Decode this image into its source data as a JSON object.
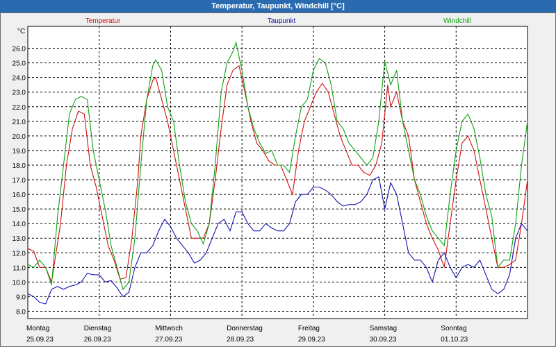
{
  "window": {
    "title": "Temperatur, Taupunkt, Windchill [°C]"
  },
  "chart_data": {
    "type": "line",
    "ylabel": "°C",
    "ylim": [
      7.5,
      27.5
    ],
    "yticks": [
      "8.0",
      "9.0",
      "10.0",
      "11.0",
      "12.0",
      "13.0",
      "14.0",
      "15.0",
      "16.0",
      "17.0",
      "18.0",
      "19.0",
      "20.0",
      "21.0",
      "22.0",
      "23.0",
      "24.0",
      "25.0",
      "26.0"
    ],
    "xlim": [
      0,
      168
    ],
    "days": [
      {
        "name": "Montag",
        "date": "25.09.23"
      },
      {
        "name": "Dienstag",
        "date": "26.09.23"
      },
      {
        "name": "Mittwoch",
        "date": "27.09.23"
      },
      {
        "name": "Donnerstag",
        "date": "28.09.23"
      },
      {
        "name": "Freitag",
        "date": "29.09.23"
      },
      {
        "name": "Samstag",
        "date": "30.09.23"
      },
      {
        "name": "Sonntag",
        "date": "01.10.23"
      }
    ],
    "series": [
      {
        "name": "Temperatur",
        "color": "#d01010",
        "points": [
          [
            0,
            12.3
          ],
          [
            2,
            12.1
          ],
          [
            4,
            11.0
          ],
          [
            6,
            11.0
          ],
          [
            8,
            10.0
          ],
          [
            11,
            14.0
          ],
          [
            13,
            18.0
          ],
          [
            15,
            20.5
          ],
          [
            17,
            21.7
          ],
          [
            19,
            21.5
          ],
          [
            21,
            18.0
          ],
          [
            23,
            16.5
          ],
          [
            25,
            14.5
          ],
          [
            27,
            12.5
          ],
          [
            29,
            11.5
          ],
          [
            31,
            10.2
          ],
          [
            33,
            10.3
          ],
          [
            35,
            13.0
          ],
          [
            37,
            17.0
          ],
          [
            38,
            20.0
          ],
          [
            40,
            22.5
          ],
          [
            42,
            23.8
          ],
          [
            43,
            24.0
          ],
          [
            45,
            22.5
          ],
          [
            47,
            21.0
          ],
          [
            49,
            19.0
          ],
          [
            51,
            17.0
          ],
          [
            53,
            15.0
          ],
          [
            55,
            13.0
          ],
          [
            57,
            13.0
          ],
          [
            59,
            13.0
          ],
          [
            61,
            14.0
          ],
          [
            63,
            17.0
          ],
          [
            65,
            20.5
          ],
          [
            67,
            23.5
          ],
          [
            69,
            24.5
          ],
          [
            71,
            24.8
          ],
          [
            73,
            23.0
          ],
          [
            75,
            21.0
          ],
          [
            77,
            19.5
          ],
          [
            79,
            19.0
          ],
          [
            81,
            18.3
          ],
          [
            83,
            18.0
          ],
          [
            85,
            18.0
          ],
          [
            87,
            17.0
          ],
          [
            89,
            16.0
          ],
          [
            91,
            19.0
          ],
          [
            93,
            21.0
          ],
          [
            95,
            22.0
          ],
          [
            97,
            23.0
          ],
          [
            99,
            23.6
          ],
          [
            101,
            23.0
          ],
          [
            103,
            21.5
          ],
          [
            105,
            20.0
          ],
          [
            107,
            19.0
          ],
          [
            109,
            18.0
          ],
          [
            111,
            18.0
          ],
          [
            113,
            17.5
          ],
          [
            115,
            17.3
          ],
          [
            117,
            18.0
          ],
          [
            119,
            19.5
          ],
          [
            121,
            23.5
          ],
          [
            122,
            22.0
          ],
          [
            124,
            23.0
          ],
          [
            126,
            21.0
          ],
          [
            128,
            20.0
          ],
          [
            130,
            17.0
          ],
          [
            132,
            15.5
          ],
          [
            134,
            14.0
          ],
          [
            136,
            13.0
          ],
          [
            138,
            12.2
          ],
          [
            140,
            11.0
          ],
          [
            142,
            14.0
          ],
          [
            144,
            17.0
          ],
          [
            146,
            19.5
          ],
          [
            148,
            20.0
          ],
          [
            150,
            19.0
          ],
          [
            152,
            17.0
          ],
          [
            154,
            15.0
          ],
          [
            156,
            13.0
          ],
          [
            158,
            11.0
          ],
          [
            160,
            11.0
          ],
          [
            162,
            11.2
          ],
          [
            164,
            11.5
          ],
          [
            166,
            14.0
          ],
          [
            168,
            17.0
          ]
        ]
      },
      {
        "name": "Taupunkt",
        "color": "#1010b0",
        "points": [
          [
            0,
            9.2
          ],
          [
            2,
            9.0
          ],
          [
            4,
            8.6
          ],
          [
            6,
            8.5
          ],
          [
            8,
            9.5
          ],
          [
            10,
            9.7
          ],
          [
            12,
            9.5
          ],
          [
            14,
            9.7
          ],
          [
            16,
            9.8
          ],
          [
            18,
            10.0
          ],
          [
            20,
            10.6
          ],
          [
            22,
            10.5
          ],
          [
            24,
            10.5
          ],
          [
            26,
            10.0
          ],
          [
            28,
            10.1
          ],
          [
            30,
            9.6
          ],
          [
            32,
            9.0
          ],
          [
            34,
            9.3
          ],
          [
            36,
            11.0
          ],
          [
            38,
            12.0
          ],
          [
            40,
            12.0
          ],
          [
            42,
            12.5
          ],
          [
            44,
            13.5
          ],
          [
            46,
            14.3
          ],
          [
            48,
            13.8
          ],
          [
            50,
            13.0
          ],
          [
            52,
            12.5
          ],
          [
            54,
            12.0
          ],
          [
            56,
            11.3
          ],
          [
            58,
            11.5
          ],
          [
            60,
            12.0
          ],
          [
            62,
            13.0
          ],
          [
            64,
            14.0
          ],
          [
            66,
            14.3
          ],
          [
            68,
            13.5
          ],
          [
            70,
            14.8
          ],
          [
            72,
            14.8
          ],
          [
            74,
            14.0
          ],
          [
            76,
            13.5
          ],
          [
            78,
            13.5
          ],
          [
            80,
            14.0
          ],
          [
            82,
            13.7
          ],
          [
            84,
            13.5
          ],
          [
            86,
            13.5
          ],
          [
            88,
            14.0
          ],
          [
            90,
            15.5
          ],
          [
            92,
            16.0
          ],
          [
            94,
            16.0
          ],
          [
            96,
            16.5
          ],
          [
            98,
            16.5
          ],
          [
            100,
            16.3
          ],
          [
            102,
            16.0
          ],
          [
            104,
            15.5
          ],
          [
            106,
            15.2
          ],
          [
            108,
            15.3
          ],
          [
            110,
            15.3
          ],
          [
            112,
            15.5
          ],
          [
            114,
            16.0
          ],
          [
            116,
            17.0
          ],
          [
            118,
            17.2
          ],
          [
            120,
            15.0
          ],
          [
            122,
            16.8
          ],
          [
            124,
            16.0
          ],
          [
            126,
            14.0
          ],
          [
            128,
            12.0
          ],
          [
            130,
            11.5
          ],
          [
            132,
            11.5
          ],
          [
            134,
            11.0
          ],
          [
            136,
            10.0
          ],
          [
            138,
            11.5
          ],
          [
            140,
            12.0
          ],
          [
            142,
            11.0
          ],
          [
            144,
            10.3
          ],
          [
            146,
            11.0
          ],
          [
            148,
            11.2
          ],
          [
            150,
            11.0
          ],
          [
            152,
            11.5
          ],
          [
            154,
            10.5
          ],
          [
            156,
            9.5
          ],
          [
            158,
            9.2
          ],
          [
            160,
            9.5
          ],
          [
            162,
            10.5
          ],
          [
            164,
            13.0
          ],
          [
            166,
            14.0
          ],
          [
            168,
            13.5
          ]
        ]
      },
      {
        "name": "Windchill",
        "color": "#10a010",
        "points": [
          [
            0,
            11.2
          ],
          [
            2,
            11.0
          ],
          [
            4,
            11.5
          ],
          [
            6,
            11.0
          ],
          [
            8,
            9.8
          ],
          [
            10,
            14.5
          ],
          [
            12,
            18.0
          ],
          [
            14,
            21.5
          ],
          [
            16,
            22.5
          ],
          [
            18,
            22.7
          ],
          [
            20,
            22.5
          ],
          [
            22,
            19.0
          ],
          [
            24,
            17.0
          ],
          [
            26,
            15.0
          ],
          [
            28,
            12.5
          ],
          [
            30,
            11.0
          ],
          [
            32,
            9.5
          ],
          [
            34,
            10.0
          ],
          [
            36,
            13.0
          ],
          [
            38,
            18.0
          ],
          [
            40,
            22.5
          ],
          [
            42,
            24.8
          ],
          [
            43,
            25.2
          ],
          [
            45,
            24.5
          ],
          [
            47,
            22.0
          ],
          [
            49,
            21.0
          ],
          [
            51,
            18.0
          ],
          [
            53,
            15.5
          ],
          [
            55,
            14.0
          ],
          [
            57,
            13.5
          ],
          [
            59,
            12.6
          ],
          [
            61,
            14.0
          ],
          [
            63,
            18.0
          ],
          [
            65,
            23.0
          ],
          [
            67,
            25.0
          ],
          [
            69,
            25.8
          ],
          [
            70,
            26.4
          ],
          [
            72,
            24.5
          ],
          [
            74,
            22.0
          ],
          [
            76,
            20.5
          ],
          [
            78,
            19.5
          ],
          [
            80,
            18.8
          ],
          [
            82,
            19.0
          ],
          [
            84,
            18.0
          ],
          [
            86,
            18.0
          ],
          [
            88,
            17.5
          ],
          [
            90,
            20.0
          ],
          [
            92,
            22.0
          ],
          [
            94,
            22.5
          ],
          [
            96,
            24.5
          ],
          [
            98,
            25.3
          ],
          [
            100,
            25.0
          ],
          [
            102,
            23.5
          ],
          [
            104,
            21.0
          ],
          [
            106,
            20.5
          ],
          [
            108,
            19.5
          ],
          [
            110,
            19.0
          ],
          [
            112,
            18.5
          ],
          [
            114,
            18.0
          ],
          [
            116,
            18.5
          ],
          [
            118,
            21.0
          ],
          [
            120,
            25.1
          ],
          [
            122,
            23.5
          ],
          [
            124,
            24.5
          ],
          [
            126,
            21.0
          ],
          [
            128,
            19.0
          ],
          [
            130,
            17.0
          ],
          [
            132,
            16.0
          ],
          [
            134,
            14.5
          ],
          [
            136,
            13.5
          ],
          [
            138,
            13.0
          ],
          [
            140,
            12.5
          ],
          [
            142,
            16.0
          ],
          [
            144,
            19.0
          ],
          [
            146,
            21.0
          ],
          [
            148,
            21.5
          ],
          [
            150,
            20.5
          ],
          [
            152,
            18.5
          ],
          [
            154,
            16.0
          ],
          [
            156,
            14.5
          ],
          [
            158,
            11.0
          ],
          [
            160,
            11.5
          ],
          [
            162,
            11.5
          ],
          [
            164,
            14.0
          ],
          [
            166,
            18.0
          ],
          [
            168,
            21.0
          ]
        ]
      }
    ]
  }
}
